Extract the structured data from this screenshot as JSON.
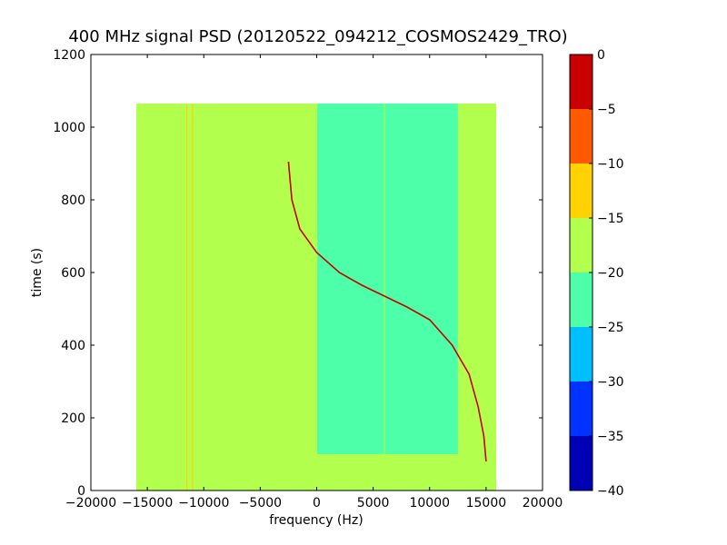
{
  "chart_data": {
    "type": "heatmap",
    "title": "400 MHz signal PSD (20120522_094212_COSMOS2429_TRO)",
    "xlabel": "frequency (Hz)",
    "ylabel": "time (s)",
    "xlim": [
      -20000,
      20000
    ],
    "ylim": [
      0,
      1200
    ],
    "x_ticks": [
      -20000,
      -15000,
      -10000,
      -5000,
      0,
      5000,
      10000,
      15000,
      20000
    ],
    "x_tick_labels": [
      "−20000",
      "−15000",
      "−10000",
      "−5000",
      "0",
      "5000",
      "10000",
      "15000",
      "20000"
    ],
    "y_ticks": [
      0,
      200,
      400,
      600,
      800,
      1000,
      1200
    ],
    "y_tick_labels": [
      "0",
      "200",
      "400",
      "600",
      "800",
      "1000",
      "1200"
    ],
    "data_extent": {
      "x": [
        -16000,
        16000
      ],
      "y": [
        0,
        1065
      ]
    },
    "colorbar": {
      "range": [
        -40,
        0
      ],
      "levels": [
        -40,
        -35,
        -30,
        -25,
        -20,
        -15,
        -10,
        -5,
        0
      ],
      "tick_labels": [
        "−40",
        "−35",
        "−30",
        "−25",
        "−20",
        "−15",
        "−10",
        "−5",
        "0"
      ],
      "colors": [
        "#0000b4",
        "#0033ff",
        "#00bfff",
        "#4dffa8",
        "#b3ff4d",
        "#ffd200",
        "#ff5a00",
        "#c80000"
      ]
    },
    "regions": [
      {
        "name": "noise-floor",
        "level": -17.5,
        "x": [
          -16000,
          16000
        ],
        "y": [
          0,
          1065
        ]
      },
      {
        "name": "low-noise-band",
        "level": -22.5,
        "x": [
          0,
          12500
        ],
        "y": [
          100,
          1065
        ]
      }
    ],
    "signal_trace": {
      "level": -2.5,
      "points": [
        [
          -2500,
          905
        ],
        [
          -2200,
          800
        ],
        [
          -1500,
          720
        ],
        [
          0,
          655
        ],
        [
          2000,
          600
        ],
        [
          4000,
          565
        ],
        [
          6000,
          535
        ],
        [
          8000,
          505
        ],
        [
          10000,
          470
        ],
        [
          12000,
          400
        ],
        [
          13500,
          320
        ],
        [
          14300,
          230
        ],
        [
          14800,
          150
        ],
        [
          15000,
          80
        ]
      ]
    },
    "vertical_lines": [
      {
        "x": -11000,
        "level": -12.5
      },
      {
        "x": -11500,
        "level": -15
      },
      {
        "x": 6000,
        "level": -17.5
      },
      {
        "x": 0,
        "level": -20
      }
    ]
  }
}
